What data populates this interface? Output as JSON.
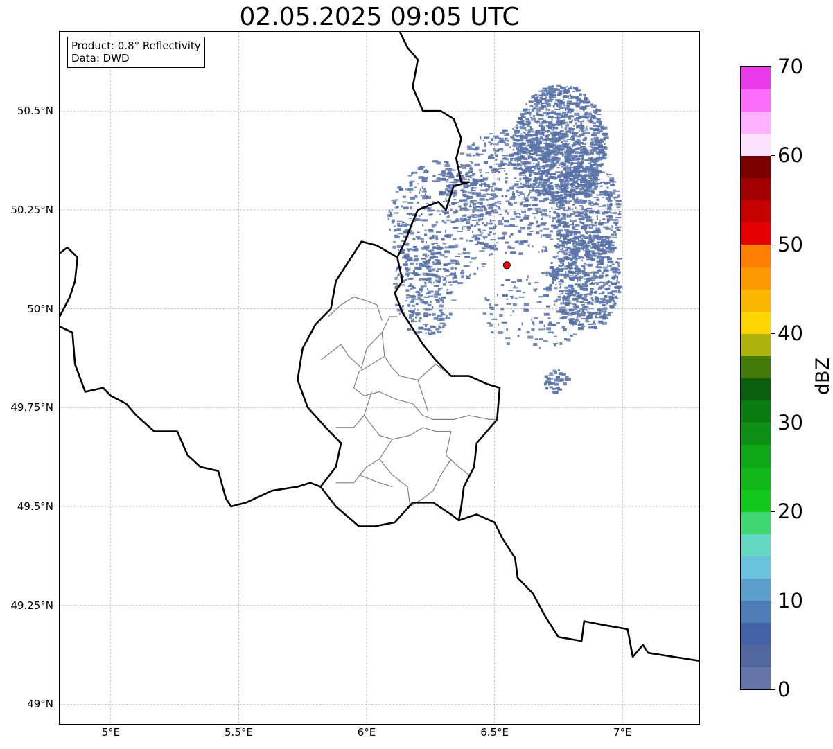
{
  "title": "02.05.2025 09:05 UTC",
  "info": {
    "line1": "Product: 0.8° Reflectivity",
    "line2": "Data: DWD"
  },
  "axes": {
    "lon_range": [
      4.8,
      7.3
    ],
    "lat_range": [
      48.95,
      50.7
    ],
    "x_ticks": [
      {
        "value": 5.0,
        "label": "5°E"
      },
      {
        "value": 5.5,
        "label": "5.5°E"
      },
      {
        "value": 6.0,
        "label": "6°E"
      },
      {
        "value": 6.5,
        "label": "6.5°E"
      },
      {
        "value": 7.0,
        "label": "7°E"
      }
    ],
    "y_ticks": [
      {
        "value": 50.5,
        "label": "50.5°N"
      },
      {
        "value": 50.25,
        "label": "50.25°N"
      },
      {
        "value": 50.0,
        "label": "50°N"
      },
      {
        "value": 49.75,
        "label": "49.75°N"
      },
      {
        "value": 49.5,
        "label": "49.5°N"
      },
      {
        "value": 49.25,
        "label": "49.25°N"
      },
      {
        "value": 49.0,
        "label": "49°N"
      }
    ],
    "grid": true
  },
  "radar_site": {
    "lon": 6.548,
    "lat": 50.11,
    "color": "#ff0000"
  },
  "echo_color": "#5a73a8",
  "colorbar": {
    "label": "dBZ",
    "min": 0,
    "max": 70,
    "ticks": [
      {
        "value": 0,
        "label": "0"
      },
      {
        "value": 10,
        "label": "10"
      },
      {
        "value": 20,
        "label": "20"
      },
      {
        "value": 30,
        "label": "30"
      },
      {
        "value": 40,
        "label": "40"
      },
      {
        "value": 50,
        "label": "50"
      },
      {
        "value": 60,
        "label": "60"
      },
      {
        "value": 70,
        "label": "70"
      }
    ],
    "colors": [
      "#6575a8",
      "#53679f",
      "#4460a6",
      "#4d7db5",
      "#5b9fcb",
      "#69c3dc",
      "#64d8c4",
      "#3fd674",
      "#14c81c",
      "#12b81a",
      "#10a818",
      "#0d8e14",
      "#0b7c12",
      "#0a5e0e",
      "#437a0a",
      "#aeb20a",
      "#fdd500",
      "#fcb700",
      "#fd9900",
      "#fd7e00",
      "#e40000",
      "#c40000",
      "#a00000",
      "#7b0000",
      "#fde0fd",
      "#fdb0fd",
      "#fd6efd",
      "#e93ae9"
    ]
  },
  "borders": {
    "national": [
      [
        [
          4.8,
          50.14
        ],
        [
          4.83,
          50.155
        ],
        [
          4.87,
          50.13
        ],
        [
          4.86,
          50.07
        ],
        [
          4.84,
          50.03
        ],
        [
          4.8,
          49.98
        ]
      ],
      [
        [
          4.8,
          49.955
        ],
        [
          4.85,
          49.94
        ],
        [
          4.86,
          49.86
        ],
        [
          4.9,
          49.79
        ],
        [
          4.97,
          49.8
        ],
        [
          5.0,
          49.78
        ],
        [
          5.06,
          49.76
        ],
        [
          5.1,
          49.73
        ],
        [
          5.17,
          49.69
        ],
        [
          5.26,
          49.69
        ],
        [
          5.3,
          49.63
        ],
        [
          5.35,
          49.6
        ],
        [
          5.42,
          49.59
        ],
        [
          5.45,
          49.52
        ],
        [
          5.47,
          49.5
        ],
        [
          5.53,
          49.51
        ],
        [
          5.63,
          49.54
        ],
        [
          5.73,
          49.55
        ],
        [
          5.78,
          49.56
        ],
        [
          5.82,
          49.55
        ]
      ],
      [
        [
          5.82,
          49.55
        ],
        [
          5.88,
          49.5
        ],
        [
          5.97,
          49.45
        ],
        [
          6.03,
          49.45
        ],
        [
          6.11,
          49.46
        ],
        [
          6.18,
          49.51
        ],
        [
          6.26,
          49.51
        ],
        [
          6.33,
          49.48
        ],
        [
          6.36,
          49.465
        ],
        [
          6.43,
          49.48
        ],
        [
          6.5,
          49.46
        ],
        [
          6.53,
          49.42
        ],
        [
          6.58,
          49.37
        ],
        [
          6.59,
          49.32
        ],
        [
          6.65,
          49.28
        ],
        [
          6.7,
          49.22
        ],
        [
          6.75,
          49.17
        ],
        [
          6.84,
          49.16
        ],
        [
          6.85,
          49.21
        ],
        [
          6.93,
          49.2
        ],
        [
          7.02,
          49.19
        ],
        [
          7.04,
          49.12
        ],
        [
          7.08,
          49.15
        ],
        [
          7.1,
          49.13
        ],
        [
          7.2,
          49.12
        ],
        [
          7.3,
          49.11
        ]
      ],
      [
        [
          6.13,
          50.7
        ],
        [
          6.16,
          50.66
        ],
        [
          6.2,
          50.63
        ],
        [
          6.18,
          50.56
        ],
        [
          6.22,
          50.5
        ],
        [
          6.29,
          50.5
        ],
        [
          6.34,
          50.48
        ],
        [
          6.37,
          50.43
        ],
        [
          6.35,
          50.38
        ],
        [
          6.37,
          50.32
        ],
        [
          6.4,
          50.32
        ],
        [
          6.34,
          50.31
        ],
        [
          6.31,
          50.25
        ],
        [
          6.28,
          50.27
        ],
        [
          6.2,
          50.25
        ],
        [
          6.18,
          50.22
        ],
        [
          6.15,
          50.17
        ],
        [
          6.12,
          50.13
        ],
        [
          6.14,
          50.07
        ],
        [
          6.11,
          50.04
        ],
        [
          6.14,
          49.99
        ],
        [
          6.19,
          49.94
        ],
        [
          6.22,
          49.91
        ],
        [
          6.27,
          49.87
        ],
        [
          6.33,
          49.83
        ],
        [
          6.4,
          49.83
        ],
        [
          6.47,
          49.81
        ],
        [
          6.52,
          49.8
        ],
        [
          6.51,
          49.72
        ],
        [
          6.43,
          49.66
        ],
        [
          6.42,
          49.6
        ],
        [
          6.38,
          49.55
        ],
        [
          6.37,
          49.5
        ],
        [
          6.36,
          49.465
        ]
      ],
      [
        [
          6.12,
          50.13
        ],
        [
          6.04,
          50.16
        ],
        [
          5.98,
          50.17
        ],
        [
          5.93,
          50.12
        ],
        [
          5.88,
          50.07
        ],
        [
          5.86,
          50.0
        ],
        [
          5.8,
          49.96
        ],
        [
          5.75,
          49.9
        ],
        [
          5.73,
          49.82
        ],
        [
          5.77,
          49.75
        ],
        [
          5.84,
          49.7
        ],
        [
          5.9,
          49.66
        ],
        [
          5.88,
          49.6
        ],
        [
          5.82,
          49.55
        ]
      ]
    ],
    "regional": [
      [
        [
          5.82,
          49.87
        ],
        [
          5.9,
          49.91
        ],
        [
          5.93,
          49.88
        ],
        [
          5.98,
          49.85
        ],
        [
          6.0,
          49.9
        ],
        [
          6.06,
          49.94
        ],
        [
          6.09,
          49.98
        ],
        [
          6.12,
          49.98
        ]
      ],
      [
        [
          5.85,
          49.98
        ],
        [
          5.9,
          50.01
        ],
        [
          5.95,
          50.03
        ],
        [
          6.0,
          50.02
        ],
        [
          6.04,
          50.01
        ],
        [
          6.06,
          49.97
        ]
      ],
      [
        [
          6.06,
          49.94
        ],
        [
          6.07,
          49.88
        ],
        [
          6.1,
          49.85
        ],
        [
          6.13,
          49.83
        ],
        [
          6.2,
          49.82
        ],
        [
          6.27,
          49.86
        ],
        [
          6.33,
          49.83
        ]
      ],
      [
        [
          6.07,
          49.88
        ],
        [
          5.97,
          49.84
        ],
        [
          5.95,
          49.8
        ],
        [
          5.99,
          49.78
        ],
        [
          6.05,
          49.79
        ],
        [
          6.12,
          49.77
        ],
        [
          6.18,
          49.76
        ],
        [
          6.22,
          49.73
        ],
        [
          6.26,
          49.72
        ],
        [
          6.34,
          49.72
        ],
        [
          6.4,
          49.73
        ],
        [
          6.48,
          49.72
        ],
        [
          6.51,
          49.72
        ]
      ],
      [
        [
          6.02,
          49.79
        ],
        [
          5.99,
          49.73
        ],
        [
          5.95,
          49.7
        ],
        [
          5.88,
          49.7
        ]
      ],
      [
        [
          5.99,
          49.73
        ],
        [
          6.05,
          49.68
        ],
        [
          6.1,
          49.67
        ],
        [
          6.17,
          49.68
        ],
        [
          6.22,
          49.7
        ],
        [
          6.27,
          49.69
        ],
        [
          6.33,
          49.69
        ]
      ],
      [
        [
          6.33,
          49.69
        ],
        [
          6.31,
          49.63
        ],
        [
          6.36,
          49.6
        ],
        [
          6.4,
          49.58
        ]
      ],
      [
        [
          6.1,
          49.67
        ],
        [
          6.05,
          49.62
        ],
        [
          6.0,
          49.6
        ],
        [
          5.95,
          49.56
        ],
        [
          5.88,
          49.56
        ]
      ],
      [
        [
          6.05,
          49.62
        ],
        [
          6.1,
          49.58
        ],
        [
          6.16,
          49.55
        ],
        [
          6.17,
          49.5
        ],
        [
          6.22,
          49.52
        ],
        [
          6.26,
          49.54
        ],
        [
          6.29,
          49.58
        ],
        [
          6.33,
          49.62
        ]
      ],
      [
        [
          5.97,
          49.58
        ],
        [
          6.05,
          49.56
        ],
        [
          6.1,
          49.55
        ]
      ],
      [
        [
          6.2,
          49.82
        ],
        [
          6.22,
          49.78
        ],
        [
          6.24,
          49.74
        ]
      ]
    ]
  }
}
